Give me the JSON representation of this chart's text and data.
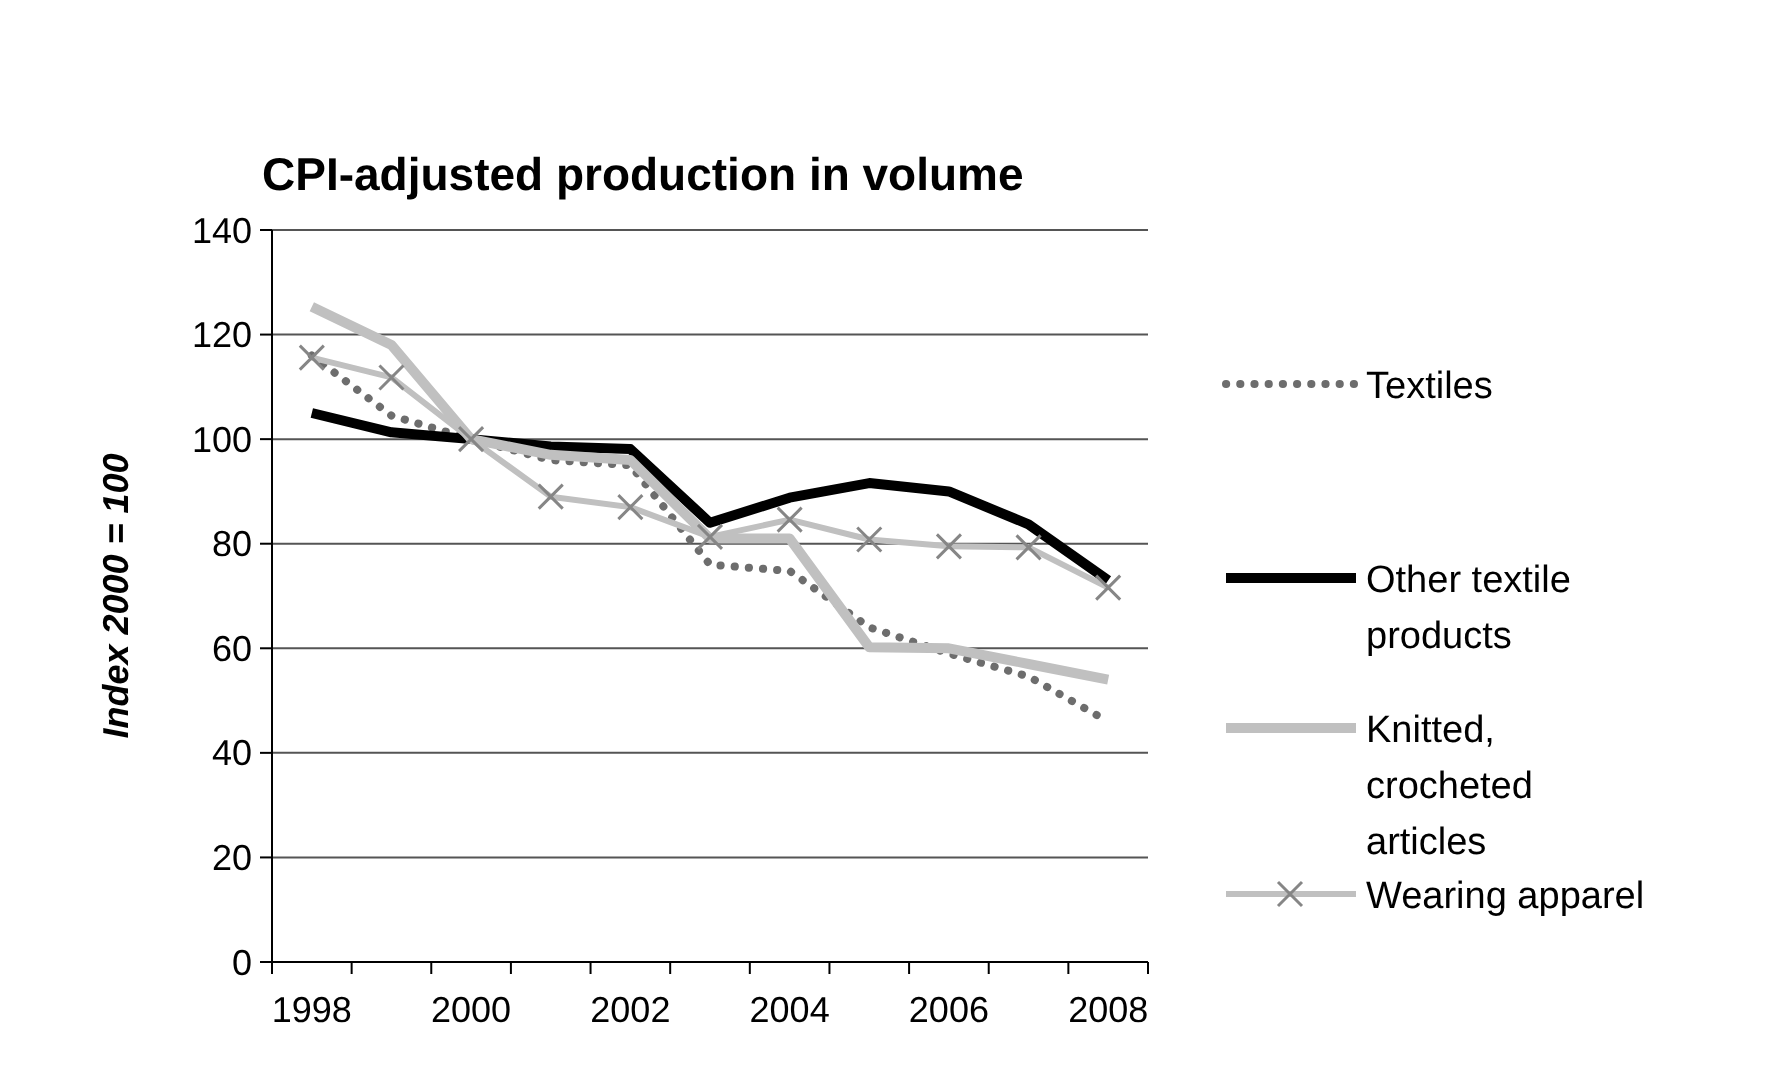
{
  "chart_data": {
    "type": "line",
    "title": "CPI‑adjusted production in volume",
    "ylabel": "Index 2000 = 100",
    "categories": [
      "1998",
      null,
      "2000",
      null,
      "2002",
      null,
      "2004",
      null,
      "2006",
      null,
      "2008"
    ],
    "series": [
      {
        "name": "Textiles",
        "color": "#6d6d6d",
        "line_style": "dotted",
        "marker": "none",
        "values": [
          116,
          104.5,
          100,
          96,
          95,
          76,
          74.8,
          64,
          59,
          54.6,
          46
        ]
      },
      {
        "name": "Other textile products",
        "color": "#000000",
        "line_style": "solid",
        "marker": "none",
        "values": [
          105,
          101.3,
          100,
          98.6,
          98.1,
          84,
          88.8,
          91.6,
          90,
          83.7,
          73
        ]
      },
      {
        "name": "Knitted, crocheted articles",
        "color": "#c0c0c0",
        "line_style": "solid",
        "marker": "none",
        "values": [
          125.3,
          118,
          100,
          97,
          96,
          81,
          81,
          60.2,
          60,
          57,
          54
        ]
      },
      {
        "name": "Wearing apparel",
        "color": "#c0c0c0",
        "line_style": "solid",
        "marker": "cross",
        "values": [
          115.6,
          111.8,
          100,
          89,
          87,
          81.3,
          84.6,
          80.8,
          79.5,
          79.3,
          71.6
        ]
      }
    ],
    "ylim": [
      0,
      140
    ],
    "yticks": [
      0,
      20,
      40,
      60,
      80,
      100,
      120,
      140
    ],
    "grid": "y",
    "legend": "right"
  }
}
